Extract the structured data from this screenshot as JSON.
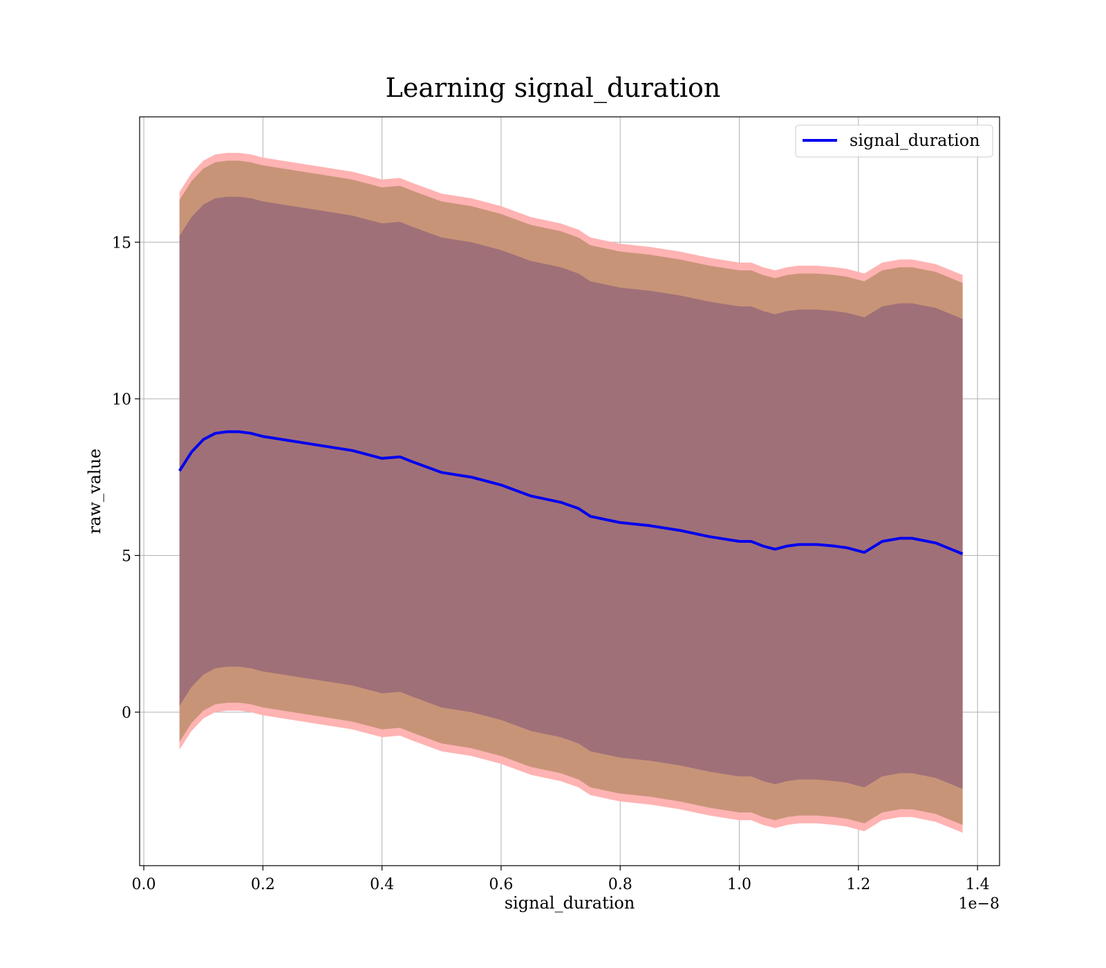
{
  "chart_data": {
    "type": "line",
    "title": "Learning signal_duration",
    "xlabel": "signal_duration",
    "ylabel": "raw_value",
    "x_offset_label": "1e−8",
    "xlim": [
      -0.007,
      1.437
    ],
    "ylim": [
      -4.9,
      19.0
    ],
    "x_ticks": [
      0.0,
      0.2,
      0.4,
      0.6,
      0.8,
      1.0,
      1.2,
      1.4
    ],
    "x_tick_labels": [
      "0.0",
      "0.2",
      "0.4",
      "0.6",
      "0.8",
      "1.0",
      "1.2",
      "1.4"
    ],
    "y_ticks": [
      0,
      5,
      10,
      15
    ],
    "y_tick_labels": [
      "0",
      "5",
      "10",
      "15"
    ],
    "grid": true,
    "legend": {
      "placement": "top-right",
      "entries": [
        "signal_duration"
      ]
    },
    "colors": {
      "line": "#0000ee",
      "outer_band": "#ffb3b3",
      "middle_band": "#c89478",
      "inner_band": "#a07078"
    },
    "series": [
      {
        "name": "signal_duration",
        "x": [
          0.06,
          0.08,
          0.1,
          0.12,
          0.14,
          0.16,
          0.18,
          0.2,
          0.25,
          0.3,
          0.35,
          0.4,
          0.43,
          0.45,
          0.5,
          0.55,
          0.6,
          0.65,
          0.7,
          0.73,
          0.75,
          0.8,
          0.85,
          0.9,
          0.95,
          1.0,
          1.02,
          1.04,
          1.06,
          1.08,
          1.1,
          1.13,
          1.16,
          1.18,
          1.21,
          1.24,
          1.27,
          1.29,
          1.33,
          1.375
        ],
        "y": [
          7.7,
          8.3,
          8.7,
          8.9,
          8.95,
          8.95,
          8.9,
          8.8,
          8.65,
          8.5,
          8.35,
          8.1,
          8.15,
          8.0,
          7.65,
          7.5,
          7.25,
          6.9,
          6.7,
          6.5,
          6.25,
          6.05,
          5.95,
          5.8,
          5.6,
          5.45,
          5.45,
          5.3,
          5.2,
          5.3,
          5.35,
          5.35,
          5.3,
          5.25,
          5.1,
          5.45,
          5.55,
          5.55,
          5.4,
          5.05
        ],
        "band_inner": {
          "half_width": 7.5
        },
        "band_middle": {
          "half_width": 8.65
        },
        "band_outer": {
          "half_width": 8.9
        }
      }
    ]
  }
}
